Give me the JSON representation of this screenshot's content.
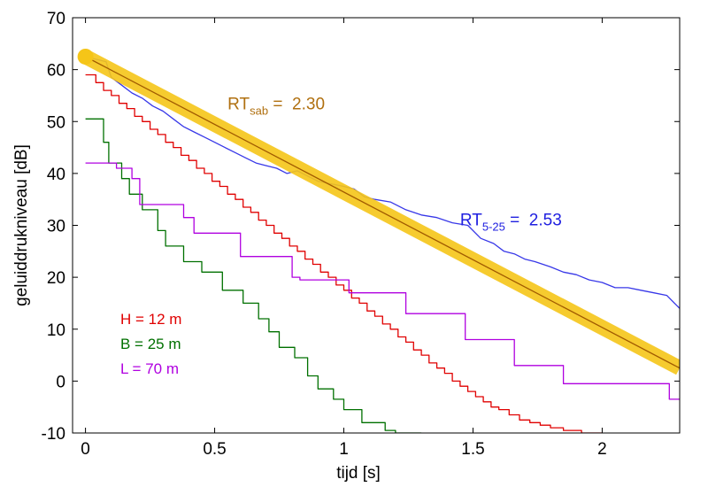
{
  "chart_data": {
    "type": "line",
    "xlabel": "tijd  [s]",
    "ylabel": "geluiddrukniveau  [dB]",
    "xlim": [
      -0.05,
      2.3
    ],
    "ylim": [
      -10,
      70
    ],
    "xticks": [
      0,
      0.5,
      1,
      1.5,
      2
    ],
    "xtick_labels": [
      "0",
      "0.5",
      "1",
      "1.5",
      "2"
    ],
    "yticks": [
      -10,
      0,
      10,
      20,
      30,
      40,
      50,
      60,
      70
    ],
    "ytick_labels": [
      "-10",
      "0",
      "10",
      "20",
      "30",
      "40",
      "50",
      "60",
      "70"
    ],
    "grid": false,
    "legend": {
      "placement": "left",
      "items": [
        {
          "label": "H = 12 m",
          "color": "#e00000"
        },
        {
          "label": "B = 25 m",
          "color": "#007000"
        },
        {
          "label": "L = 70 m",
          "color": "#b000e0"
        }
      ]
    },
    "annotations": [
      {
        "main": "RT",
        "sub": "sab",
        "rest": " =  2.30",
        "color": "#b07010",
        "x": 0.55,
        "y": 50
      },
      {
        "main": "RT",
        "sub": "5-25",
        "rest": " =  2.53",
        "color": "#2020e0",
        "x": 1.45,
        "y": 30
      }
    ],
    "series": [
      {
        "color": "#e00000",
        "style": "step",
        "points": [
          [
            0,
            59
          ],
          [
            0.04,
            59
          ],
          [
            0.04,
            57.5
          ],
          [
            0.07,
            57.5
          ],
          [
            0.07,
            56
          ],
          [
            0.1,
            56
          ],
          [
            0.1,
            55
          ],
          [
            0.13,
            55
          ],
          [
            0.13,
            53.5
          ],
          [
            0.16,
            53.5
          ],
          [
            0.16,
            52.5
          ],
          [
            0.19,
            52.5
          ],
          [
            0.19,
            51
          ],
          [
            0.22,
            51
          ],
          [
            0.22,
            50
          ],
          [
            0.25,
            50
          ],
          [
            0.25,
            48.5
          ],
          [
            0.28,
            48.5
          ],
          [
            0.28,
            47.5
          ],
          [
            0.31,
            47.5
          ],
          [
            0.31,
            46
          ],
          [
            0.34,
            46
          ],
          [
            0.34,
            45
          ],
          [
            0.37,
            45
          ],
          [
            0.37,
            43.5
          ],
          [
            0.4,
            43.5
          ],
          [
            0.4,
            42.5
          ],
          [
            0.43,
            42.5
          ],
          [
            0.43,
            41
          ],
          [
            0.46,
            41
          ],
          [
            0.46,
            40
          ],
          [
            0.49,
            40
          ],
          [
            0.49,
            38.5
          ],
          [
            0.52,
            38.5
          ],
          [
            0.52,
            37.5
          ],
          [
            0.55,
            37.5
          ],
          [
            0.55,
            36
          ],
          [
            0.58,
            36
          ],
          [
            0.58,
            35
          ],
          [
            0.61,
            35
          ],
          [
            0.61,
            33.5
          ],
          [
            0.64,
            33.5
          ],
          [
            0.64,
            32.5
          ],
          [
            0.67,
            32.5
          ],
          [
            0.67,
            31
          ],
          [
            0.7,
            31
          ],
          [
            0.7,
            30
          ],
          [
            0.73,
            30
          ],
          [
            0.73,
            28.5
          ],
          [
            0.76,
            28.5
          ],
          [
            0.76,
            27.5
          ],
          [
            0.79,
            27.5
          ],
          [
            0.79,
            26
          ],
          [
            0.82,
            26
          ],
          [
            0.82,
            25
          ],
          [
            0.85,
            25
          ],
          [
            0.85,
            23.5
          ],
          [
            0.88,
            23.5
          ],
          [
            0.88,
            22.5
          ],
          [
            0.91,
            22.5
          ],
          [
            0.91,
            21
          ],
          [
            0.94,
            21
          ],
          [
            0.94,
            20
          ],
          [
            0.97,
            20
          ],
          [
            0.97,
            18.5
          ],
          [
            1.0,
            18.5
          ],
          [
            1.0,
            17.5
          ],
          [
            1.03,
            17.5
          ],
          [
            1.03,
            16
          ],
          [
            1.06,
            16
          ],
          [
            1.06,
            15
          ],
          [
            1.09,
            15
          ],
          [
            1.09,
            13.5
          ],
          [
            1.12,
            13.5
          ],
          [
            1.12,
            12.5
          ],
          [
            1.15,
            12.5
          ],
          [
            1.15,
            11
          ],
          [
            1.18,
            11
          ],
          [
            1.18,
            10
          ],
          [
            1.21,
            10
          ],
          [
            1.21,
            8.5
          ],
          [
            1.24,
            8.5
          ],
          [
            1.24,
            7.5
          ],
          [
            1.27,
            7.5
          ],
          [
            1.27,
            6
          ],
          [
            1.3,
            6
          ],
          [
            1.3,
            5
          ],
          [
            1.33,
            5
          ],
          [
            1.33,
            3.5
          ],
          [
            1.36,
            3.5
          ],
          [
            1.36,
            2.5
          ],
          [
            1.39,
            2.5
          ],
          [
            1.39,
            1.5
          ],
          [
            1.42,
            1.5
          ],
          [
            1.42,
            0
          ],
          [
            1.45,
            0
          ],
          [
            1.45,
            -1
          ],
          [
            1.48,
            -1
          ],
          [
            1.48,
            -2
          ],
          [
            1.51,
            -2
          ],
          [
            1.51,
            -3
          ],
          [
            1.54,
            -3
          ],
          [
            1.54,
            -4
          ],
          [
            1.57,
            -4
          ],
          [
            1.57,
            -5
          ],
          [
            1.6,
            -5
          ],
          [
            1.6,
            -5.5
          ],
          [
            1.64,
            -5.5
          ],
          [
            1.64,
            -6.5
          ],
          [
            1.68,
            -6.5
          ],
          [
            1.68,
            -7.5
          ],
          [
            1.72,
            -7.5
          ],
          [
            1.72,
            -8
          ],
          [
            1.76,
            -8
          ],
          [
            1.76,
            -8.5
          ],
          [
            1.8,
            -8.5
          ],
          [
            1.8,
            -9
          ],
          [
            1.85,
            -9
          ],
          [
            1.85,
            -9.5
          ],
          [
            1.92,
            -9.5
          ],
          [
            1.92,
            -10
          ],
          [
            2.0,
            -10
          ]
        ]
      },
      {
        "color": "#007000",
        "style": "step",
        "points": [
          [
            0,
            50.5
          ],
          [
            0.07,
            50.5
          ],
          [
            0.07,
            46
          ],
          [
            0.09,
            46
          ],
          [
            0.09,
            42
          ],
          [
            0.14,
            42
          ],
          [
            0.14,
            39
          ],
          [
            0.17,
            39
          ],
          [
            0.17,
            36
          ],
          [
            0.22,
            36
          ],
          [
            0.22,
            33
          ],
          [
            0.28,
            33
          ],
          [
            0.28,
            29
          ],
          [
            0.31,
            29
          ],
          [
            0.31,
            26
          ],
          [
            0.38,
            26
          ],
          [
            0.38,
            23
          ],
          [
            0.45,
            23
          ],
          [
            0.45,
            21
          ],
          [
            0.53,
            21
          ],
          [
            0.53,
            17.5
          ],
          [
            0.61,
            17.5
          ],
          [
            0.61,
            15
          ],
          [
            0.67,
            15
          ],
          [
            0.67,
            12
          ],
          [
            0.71,
            12
          ],
          [
            0.71,
            9.5
          ],
          [
            0.75,
            9.5
          ],
          [
            0.75,
            6.5
          ],
          [
            0.81,
            6.5
          ],
          [
            0.81,
            4.5
          ],
          [
            0.86,
            4.5
          ],
          [
            0.86,
            1
          ],
          [
            0.9,
            1
          ],
          [
            0.9,
            -1.5
          ],
          [
            0.96,
            -1.5
          ],
          [
            0.96,
            -3.5
          ],
          [
            1.0,
            -3.5
          ],
          [
            1.0,
            -5.5
          ],
          [
            1.07,
            -5.5
          ],
          [
            1.07,
            -8
          ],
          [
            1.16,
            -8
          ],
          [
            1.16,
            -9.5
          ],
          [
            1.2,
            -9.5
          ],
          [
            1.2,
            -10
          ],
          [
            1.3,
            -10
          ]
        ]
      },
      {
        "color": "#b000e0",
        "style": "step",
        "points": [
          [
            0,
            42
          ],
          [
            0.12,
            42
          ],
          [
            0.12,
            41
          ],
          [
            0.18,
            41
          ],
          [
            0.18,
            39
          ],
          [
            0.21,
            39
          ],
          [
            0.21,
            34
          ],
          [
            0.38,
            34
          ],
          [
            0.38,
            31.5
          ],
          [
            0.42,
            31.5
          ],
          [
            0.42,
            28.5
          ],
          [
            0.6,
            28.5
          ],
          [
            0.6,
            24
          ],
          [
            0.8,
            24
          ],
          [
            0.8,
            20
          ],
          [
            0.83,
            20
          ],
          [
            0.83,
            19.5
          ],
          [
            1.02,
            19.5
          ],
          [
            1.02,
            17
          ],
          [
            1.24,
            17
          ],
          [
            1.24,
            13
          ],
          [
            1.47,
            13
          ],
          [
            1.47,
            8
          ],
          [
            1.66,
            8
          ],
          [
            1.66,
            3
          ],
          [
            1.85,
            3
          ],
          [
            1.85,
            -0.5
          ],
          [
            2.26,
            -0.5
          ],
          [
            2.26,
            -3.5
          ],
          [
            2.3,
            -3.5
          ]
        ]
      },
      {
        "color": "#3838e8",
        "style": "line",
        "points": [
          [
            0,
            62.5
          ],
          [
            0.04,
            62
          ],
          [
            0.08,
            61.5
          ],
          [
            0.1,
            58.5
          ],
          [
            0.14,
            57
          ],
          [
            0.18,
            55.5
          ],
          [
            0.22,
            54.5
          ],
          [
            0.26,
            53
          ],
          [
            0.3,
            52
          ],
          [
            0.34,
            50.5
          ],
          [
            0.38,
            49
          ],
          [
            0.42,
            48
          ],
          [
            0.46,
            47
          ],
          [
            0.5,
            46
          ],
          [
            0.54,
            45
          ],
          [
            0.58,
            44
          ],
          [
            0.62,
            43
          ],
          [
            0.66,
            42
          ],
          [
            0.7,
            41.5
          ],
          [
            0.74,
            41
          ],
          [
            0.78,
            40
          ],
          [
            0.82,
            40.5
          ],
          [
            0.86,
            39.5
          ],
          [
            0.9,
            38.5
          ],
          [
            0.95,
            38
          ],
          [
            1.0,
            37.5
          ],
          [
            1.04,
            37
          ],
          [
            1.08,
            35.5
          ],
          [
            1.12,
            35
          ],
          [
            1.18,
            34.5
          ],
          [
            1.24,
            33
          ],
          [
            1.3,
            32
          ],
          [
            1.36,
            31.5
          ],
          [
            1.42,
            30.5
          ],
          [
            1.48,
            30
          ],
          [
            1.53,
            27.5
          ],
          [
            1.58,
            26.5
          ],
          [
            1.62,
            25
          ],
          [
            1.66,
            24.5
          ],
          [
            1.7,
            23.5
          ],
          [
            1.74,
            23
          ],
          [
            1.8,
            22
          ],
          [
            1.85,
            21
          ],
          [
            1.9,
            20.5
          ],
          [
            1.95,
            19.5
          ],
          [
            2.0,
            19
          ],
          [
            2.05,
            18
          ],
          [
            2.1,
            18
          ],
          [
            2.15,
            17.5
          ],
          [
            2.2,
            17
          ],
          [
            2.25,
            16.5
          ],
          [
            2.3,
            14
          ]
        ]
      },
      {
        "color": "#f5c518",
        "style": "thick",
        "points": [
          [
            0,
            62.5
          ],
          [
            2.3,
            2.5
          ]
        ]
      },
      {
        "color": "#a05a00",
        "style": "line",
        "points": [
          [
            0,
            62.5
          ],
          [
            2.3,
            2.5
          ]
        ]
      }
    ],
    "markers": [
      {
        "color": "#f5c518",
        "x": 0,
        "y": 62.5
      }
    ]
  }
}
